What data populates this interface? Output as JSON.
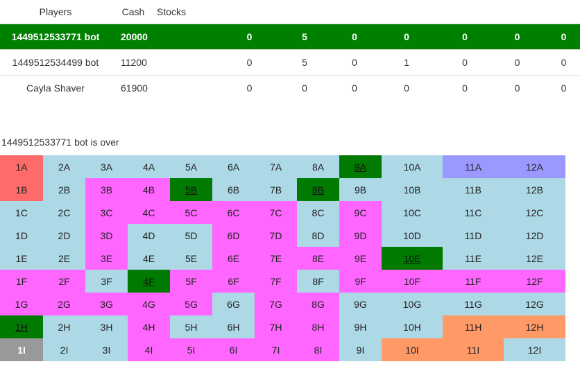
{
  "headers": {
    "players": "Players",
    "cash": "Cash",
    "stocks": "Stocks"
  },
  "players": [
    {
      "name": "1449512533771 bot",
      "cash": "20000",
      "stocks": [
        "0",
        "5",
        "0",
        "0",
        "0",
        "0",
        "0"
      ],
      "active": true
    },
    {
      "name": "1449512534499 bot",
      "cash": "11200",
      "stocks": [
        "0",
        "5",
        "0",
        "1",
        "0",
        "0",
        "0"
      ],
      "active": false
    },
    {
      "name": "Cayla Shaver",
      "cash": "61900",
      "stocks": [
        "0",
        "0",
        "0",
        "0",
        "0",
        "0",
        "0"
      ],
      "active": false
    }
  ],
  "status": "1449512533771 bot is over",
  "colors": {
    "blue": "#add8e6",
    "pink": "#ff66ff",
    "red": "#ff6a6a",
    "green": "#007a00",
    "purple": "#9999ff",
    "orange": "#ff9966",
    "gray": "#999999",
    "active_row": "#008000"
  },
  "board": {
    "columns": [
      "1",
      "2",
      "3",
      "4",
      "5",
      "6",
      "7",
      "8",
      "9",
      "10",
      "11",
      "12"
    ],
    "rows": [
      "A",
      "B",
      "C",
      "D",
      "E",
      "F",
      "G",
      "H",
      "I"
    ],
    "cells": [
      [
        "red",
        "blue",
        "blue",
        "blue",
        "blue",
        "blue",
        "blue",
        "blue",
        "green",
        "blue",
        "purple",
        "purple"
      ],
      [
        "red",
        "blue",
        "pink",
        "pink",
        "green",
        "blue",
        "blue",
        "green",
        "blue",
        "blue",
        "blue",
        "blue"
      ],
      [
        "blue",
        "blue",
        "pink",
        "pink",
        "pink",
        "pink",
        "pink",
        "blue",
        "pink",
        "blue",
        "blue",
        "blue"
      ],
      [
        "blue",
        "blue",
        "pink",
        "blue",
        "blue",
        "pink",
        "pink",
        "blue",
        "pink",
        "blue",
        "blue",
        "blue"
      ],
      [
        "blue",
        "blue",
        "pink",
        "blue",
        "blue",
        "pink",
        "pink",
        "pink",
        "pink",
        "green",
        "blue",
        "blue"
      ],
      [
        "pink",
        "pink",
        "blue",
        "green",
        "pink",
        "pink",
        "pink",
        "blue",
        "pink",
        "pink",
        "pink",
        "pink"
      ],
      [
        "pink",
        "pink",
        "pink",
        "pink",
        "pink",
        "blue",
        "pink",
        "pink",
        "blue",
        "blue",
        "blue",
        "blue"
      ],
      [
        "green",
        "blue",
        "blue",
        "pink",
        "blue",
        "blue",
        "pink",
        "pink",
        "blue",
        "blue",
        "orange",
        "orange"
      ],
      [
        "gray",
        "blue",
        "blue",
        "pink",
        "pink",
        "pink",
        "pink",
        "pink",
        "blue",
        "orange",
        "orange",
        "blue"
      ]
    ]
  }
}
